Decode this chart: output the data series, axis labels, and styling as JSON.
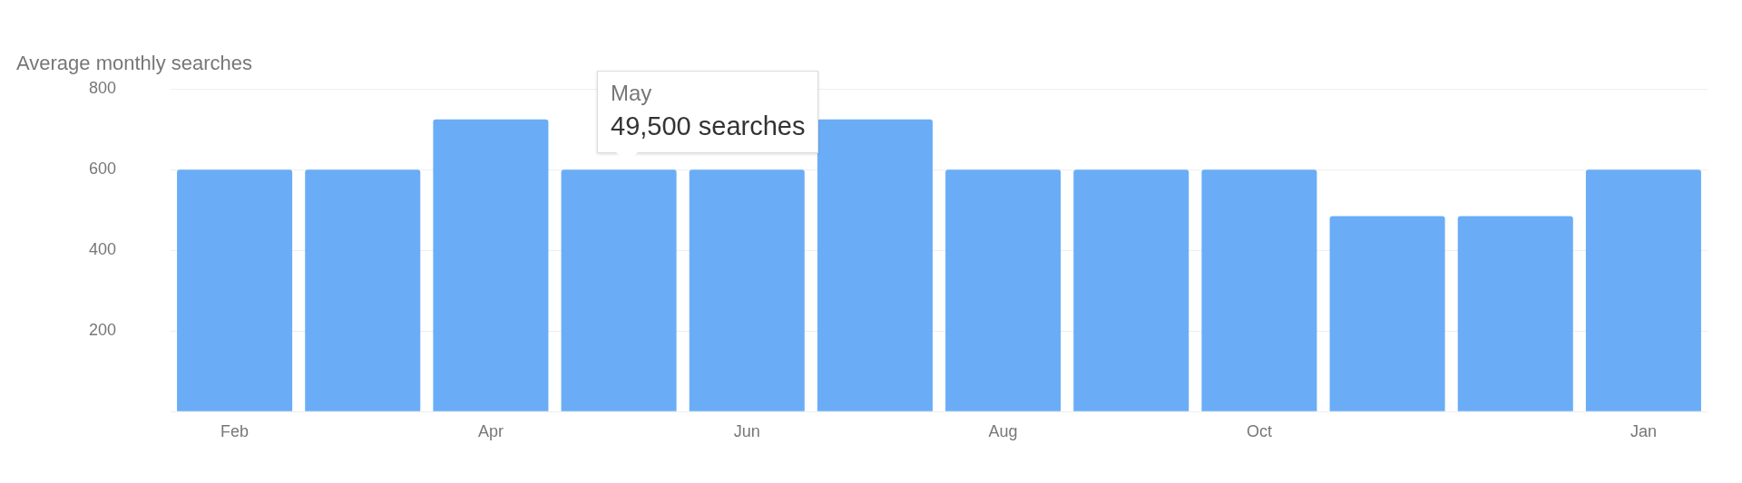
{
  "chart_data": {
    "type": "bar",
    "title": "Average monthly searches",
    "categories": [
      "Feb",
      null,
      "Apr",
      null,
      "Jun",
      null,
      "Aug",
      null,
      "Oct",
      null,
      null,
      "Jan"
    ],
    "values": [
      600,
      600,
      725,
      600,
      600,
      725,
      600,
      600,
      600,
      485,
      485,
      600
    ],
    "color": "#6aadf6",
    "ylim": [
      0,
      800
    ],
    "yticks": [
      {
        "value": 0,
        "label": null
      },
      200,
      400,
      600,
      800
    ],
    "grid": "y",
    "legend": false,
    "annotations": [
      "May",
      "49,500 searches"
    ]
  }
}
